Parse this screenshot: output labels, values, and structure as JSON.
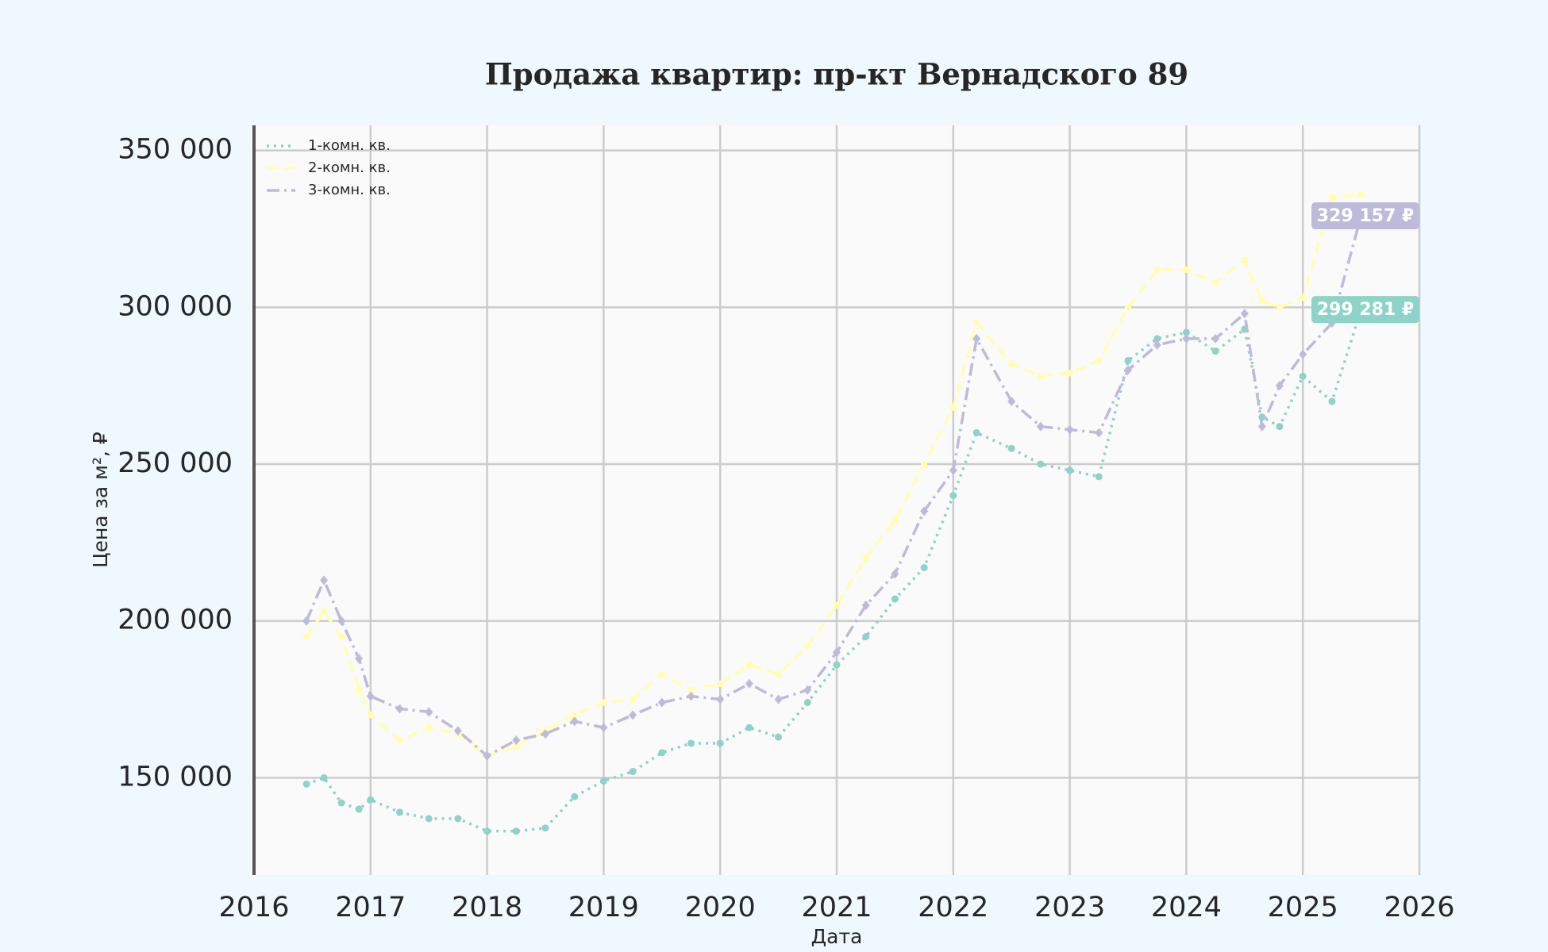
{
  "chart_data": {
    "type": "line",
    "title": "Продажа квартир: пр-кт Вернадского 89",
    "x_label": "Дата",
    "y_label": "Цена за м², ₽",
    "x": [
      2016.45,
      2016.6,
      2016.75,
      2016.9,
      2017.0,
      2017.25,
      2017.5,
      2017.75,
      2018.0,
      2018.25,
      2018.5,
      2018.75,
      2019.0,
      2019.25,
      2019.5,
      2019.75,
      2020.0,
      2020.25,
      2020.5,
      2020.75,
      2021.0,
      2021.25,
      2021.5,
      2021.75,
      2022.0,
      2022.2,
      2022.5,
      2022.75,
      2023.0,
      2023.25,
      2023.5,
      2023.75,
      2024.0,
      2024.25,
      2024.5,
      2024.65,
      2024.8,
      2025.0,
      2025.25,
      2025.5
    ],
    "series": [
      {
        "name": "1-комн. кв.",
        "color": "#8dd3c7",
        "style": "dotted",
        "marker": "circle",
        "end_label": "299 281 ₽",
        "values": [
          148000,
          150000,
          142000,
          140000,
          143000,
          139000,
          137000,
          137000,
          133000,
          133000,
          134000,
          144000,
          149000,
          152000,
          158000,
          161000,
          161000,
          166000,
          163000,
          174000,
          186000,
          195000,
          207000,
          217000,
          240000,
          260000,
          255000,
          250000,
          248000,
          246000,
          283000,
          290000,
          292000,
          286000,
          293000,
          265000,
          262000,
          278000,
          270000,
          299281
        ]
      },
      {
        "name": "2-комн. кв.",
        "color": "#ffffb3",
        "style": "dashed",
        "marker": "square",
        "values": [
          195000,
          203000,
          195000,
          178000,
          170000,
          162000,
          166000,
          164000,
          157000,
          160000,
          165000,
          170000,
          174000,
          175000,
          183000,
          178000,
          180000,
          186000,
          183000,
          192000,
          205000,
          220000,
          232000,
          250000,
          268000,
          295000,
          282000,
          278000,
          279000,
          283000,
          300000,
          312000,
          312000,
          308000,
          315000,
          302000,
          300000,
          303000,
          335000,
          336000
        ]
      },
      {
        "name": "3-комн. кв.",
        "color": "#bebada",
        "style": "dashdot",
        "marker": "diamond",
        "end_label": "329 157 ₽",
        "values": [
          200000,
          213000,
          200000,
          188000,
          176000,
          172000,
          171000,
          165000,
          157000,
          162000,
          164000,
          168000,
          166000,
          170000,
          174000,
          176000,
          175000,
          180000,
          175000,
          178000,
          190000,
          205000,
          215000,
          235000,
          248000,
          290000,
          270000,
          262000,
          261000,
          260000,
          280000,
          288000,
          290000,
          290000,
          298000,
          262000,
          275000,
          285000,
          295000,
          329157
        ]
      }
    ],
    "xlim": [
      2016,
      2026
    ],
    "xticks": [
      2016,
      2017,
      2018,
      2019,
      2020,
      2021,
      2022,
      2023,
      2024,
      2025,
      2026
    ],
    "ylim": [
      119000,
      358000
    ],
    "yticks": [
      {
        "value": 150000,
        "label": "150 000"
      },
      {
        "value": 200000,
        "label": "200 000"
      },
      {
        "value": 250000,
        "label": "250 000"
      },
      {
        "value": 300000,
        "label": "300 000"
      },
      {
        "value": 350000,
        "label": "350 000"
      }
    ],
    "grid": true,
    "legend": "upper-left"
  }
}
